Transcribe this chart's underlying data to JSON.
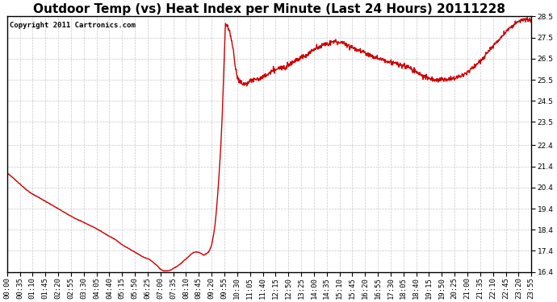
{
  "title": "Outdoor Temp (vs) Heat Index per Minute (Last 24 Hours) 20111228",
  "copyright": "Copyright 2011 Cartronics.com",
  "line_color": "#cc0000",
  "bg_color": "#ffffff",
  "plot_bg_color": "#ffffff",
  "grid_color": "#c8c8c8",
  "ylim": [
    16.4,
    28.5
  ],
  "yticks": [
    16.4,
    17.4,
    18.4,
    19.4,
    20.4,
    21.4,
    22.4,
    23.5,
    24.5,
    25.5,
    26.5,
    27.5,
    28.5
  ],
  "title_fontsize": 11,
  "copyright_fontsize": 6.5,
  "tick_fontsize": 6.5,
  "line_width": 1.0,
  "x_tick_labels": [
    "00:00",
    "00:35",
    "01:10",
    "01:45",
    "02:20",
    "02:55",
    "03:30",
    "04:05",
    "04:40",
    "05:15",
    "05:50",
    "06:25",
    "07:00",
    "07:35",
    "08:10",
    "08:45",
    "09:20",
    "09:55",
    "10:30",
    "11:05",
    "11:40",
    "12:15",
    "12:50",
    "13:25",
    "14:00",
    "14:35",
    "15:10",
    "15:45",
    "16:20",
    "16:55",
    "17:30",
    "18:05",
    "18:40",
    "19:15",
    "19:50",
    "20:25",
    "21:00",
    "21:35",
    "22:10",
    "22:45",
    "23:20",
    "23:55"
  ],
  "anchors_x": [
    0,
    30,
    60,
    90,
    120,
    150,
    180,
    210,
    240,
    270,
    300,
    315,
    330,
    345,
    360,
    375,
    390,
    405,
    415,
    420,
    425,
    430,
    440,
    450,
    460,
    470,
    480,
    490,
    500,
    510,
    520,
    530,
    535,
    540,
    545,
    550,
    555,
    560,
    570,
    580,
    590,
    595,
    600,
    610,
    620,
    630,
    640,
    650,
    660,
    670,
    680,
    700,
    720,
    740,
    760,
    780,
    800,
    820,
    840,
    860,
    880,
    900,
    920,
    940,
    960,
    980,
    1000,
    1020,
    1040,
    1060,
    1080,
    1100,
    1120,
    1140,
    1160,
    1180,
    1200,
    1220,
    1240,
    1260,
    1280,
    1300,
    1320,
    1340,
    1360,
    1380,
    1400,
    1420,
    1439
  ],
  "anchors_y": [
    21.1,
    20.65,
    20.2,
    19.9,
    19.6,
    19.3,
    19.0,
    18.75,
    18.5,
    18.2,
    17.9,
    17.7,
    17.55,
    17.4,
    17.25,
    17.1,
    17.0,
    16.8,
    16.65,
    16.55,
    16.5,
    16.45,
    16.45,
    16.5,
    16.6,
    16.7,
    16.85,
    17.0,
    17.15,
    17.3,
    17.35,
    17.3,
    17.25,
    17.2,
    17.25,
    17.3,
    17.4,
    17.6,
    18.5,
    20.5,
    23.5,
    26.0,
    28.1,
    27.8,
    27.0,
    25.8,
    25.4,
    25.3,
    25.35,
    25.45,
    25.5,
    25.6,
    25.8,
    26.0,
    26.1,
    26.3,
    26.5,
    26.65,
    26.9,
    27.1,
    27.2,
    27.3,
    27.25,
    27.1,
    26.95,
    26.8,
    26.65,
    26.5,
    26.4,
    26.3,
    26.2,
    26.1,
    25.9,
    25.7,
    25.55,
    25.5,
    25.5,
    25.55,
    25.65,
    25.8,
    26.1,
    26.4,
    26.8,
    27.2,
    27.6,
    27.95,
    28.2,
    28.35,
    28.25
  ]
}
